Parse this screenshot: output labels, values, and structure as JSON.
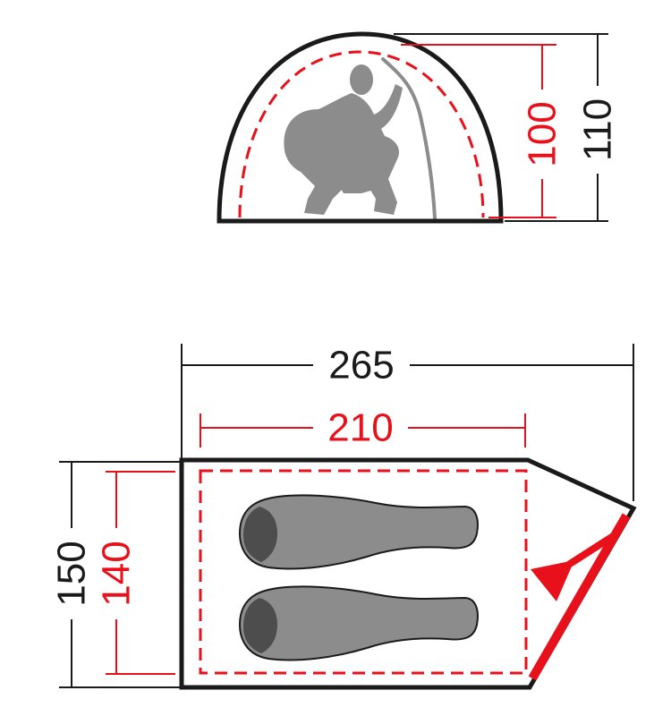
{
  "colors": {
    "outline": "#1a1a1a",
    "inner": "#e8101a",
    "figure": "#8c8c8c",
    "bag_dark": "#4d4d4d",
    "entrance": "#e8101a",
    "background": "#ffffff"
  },
  "side_view": {
    "outer_height_label": "110",
    "inner_height_label": "100"
  },
  "floor_plan": {
    "outer_length_label": "265",
    "inner_length_label": "210",
    "outer_width_label": "150",
    "inner_width_label": "140",
    "sleeping_bag_count": 2
  },
  "icons": {
    "occupant": "seated-person-icon",
    "sleeping_bag": "sleeping-bag-icon",
    "entrance": "entrance-arrow-icon"
  }
}
